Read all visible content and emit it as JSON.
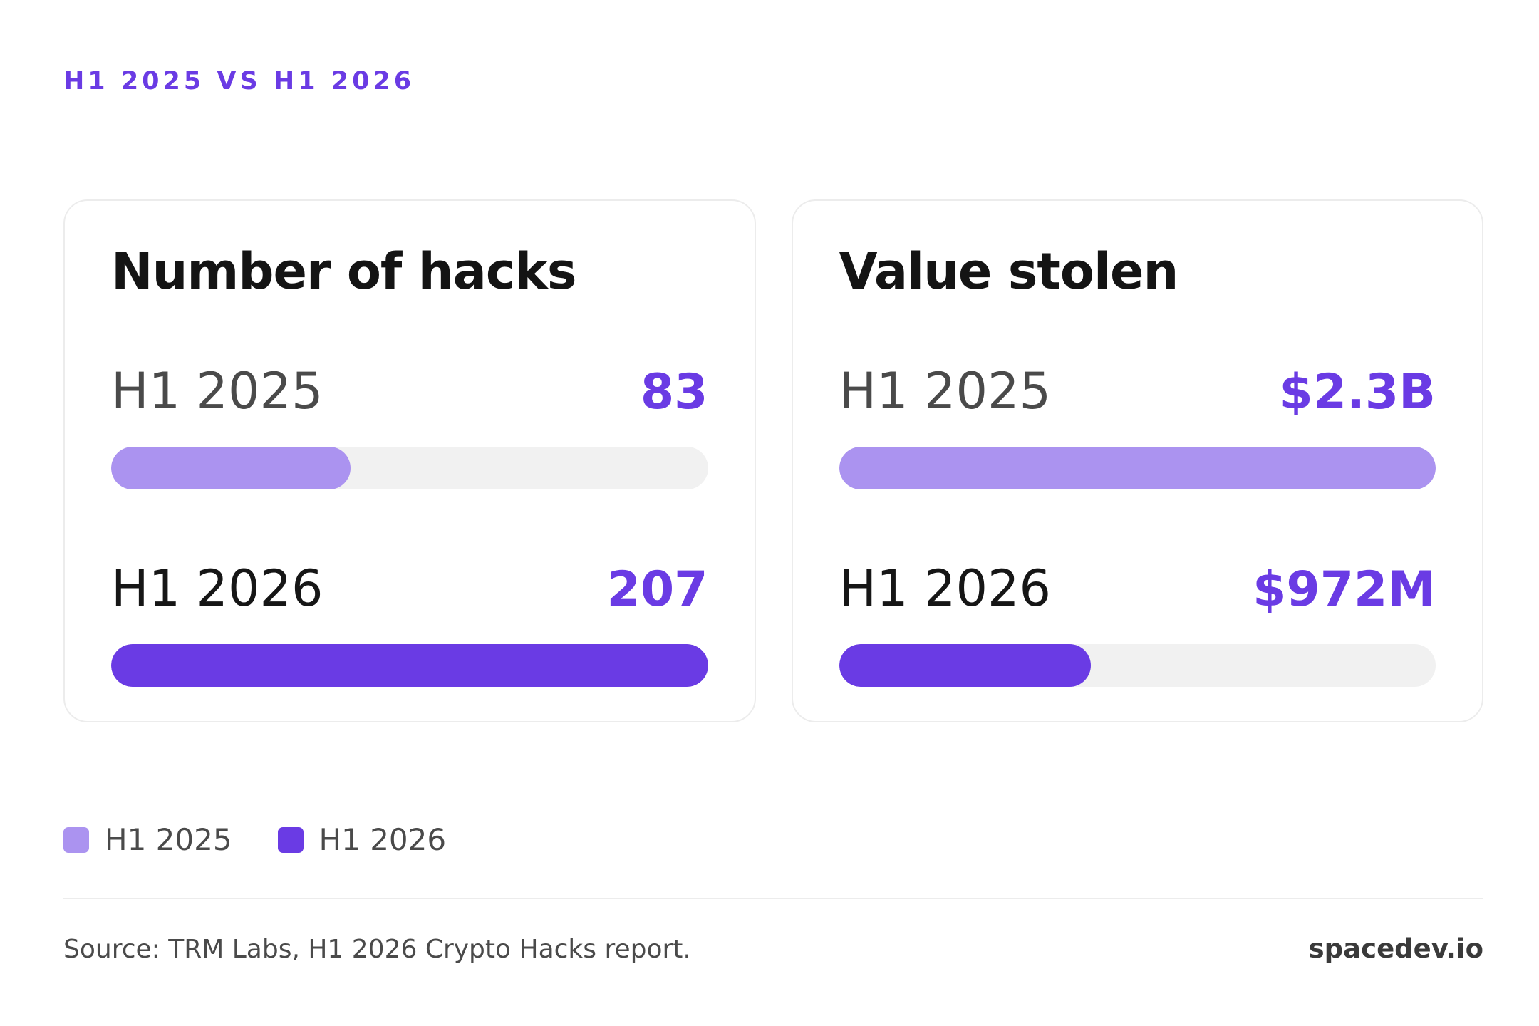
{
  "eyebrow": "H1 2025 VS H1 2026",
  "colors": {
    "accent": "#6a3be4",
    "previous": "#ab93f0",
    "track": "#f1f1f1"
  },
  "chart_data": [
    {
      "type": "bar",
      "title": "Number of hacks",
      "categories": [
        "H1 2025",
        "H1 2026"
      ],
      "values": [
        83,
        207
      ],
      "value_labels": [
        "83",
        "207"
      ],
      "max": 207,
      "orientation": "horizontal"
    },
    {
      "type": "bar",
      "title": "Value stolen",
      "categories": [
        "H1 2025",
        "H1 2026"
      ],
      "values": [
        2300000000,
        972000000
      ],
      "value_labels": [
        "$2.3B",
        "$972M"
      ],
      "max": 2300000000,
      "orientation": "horizontal"
    }
  ],
  "legend": [
    {
      "label": "H1 2025",
      "color": "#ab93f0"
    },
    {
      "label": "H1 2026",
      "color": "#6a3be4"
    }
  ],
  "footer": {
    "source": "Source: TRM Labs, H1 2026 Crypto Hacks report.",
    "brand": "spacedev.io"
  }
}
